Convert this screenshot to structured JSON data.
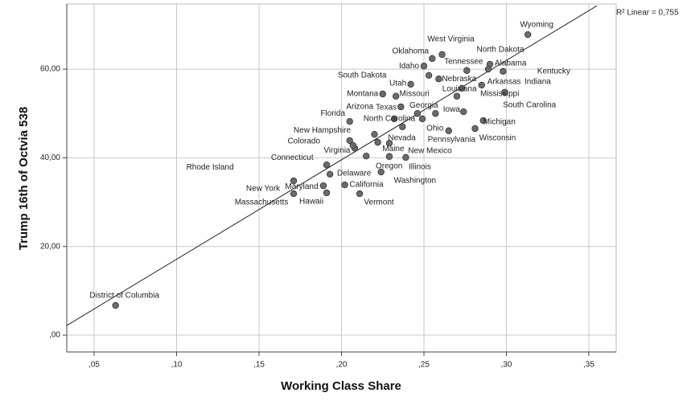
{
  "chart_data": {
    "type": "scatter",
    "x_label": "Working Class Share",
    "y_label": "Trump 16th of Octvia 538",
    "fit_label": "R² Linear = 0,755",
    "point_color": "#6b6b6b",
    "grid": true,
    "xlim": [
      0.0334,
      0.3666
    ],
    "ylim": [
      -3.8,
      74.7
    ],
    "xticks": [
      {
        "value": 0.05,
        "label": ",05"
      },
      {
        "value": 0.1,
        "label": ",10"
      },
      {
        "value": 0.15,
        "label": ",15"
      },
      {
        "value": 0.2,
        "label": ",20"
      },
      {
        "value": 0.25,
        "label": ",25"
      },
      {
        "value": 0.3,
        "label": ",30"
      },
      {
        "value": 0.35,
        "label": ",35"
      }
    ],
    "yticks": [
      {
        "value": 0,
        "label": ",00"
      },
      {
        "value": 20,
        "label": "20,00"
      },
      {
        "value": 40,
        "label": "40,00"
      },
      {
        "value": 60,
        "label": "60,00"
      }
    ],
    "fit_x": [
      0.0334,
      0.3549
    ],
    "fit_y": [
      2.18,
      74.3
    ],
    "point_labels": [
      "Wyoming",
      "West Virginia",
      "Oklahoma",
      "North Dakota",
      "Idaho",
      "Tennessee",
      "Alabama",
      "Kentucky",
      "South Dakota",
      "Nebraska",
      "Utah",
      "Arkansas",
      "Indiana",
      "Louisiana",
      "Mississippi",
      "Montana",
      "Missouri",
      "South Carolina",
      "Iowa",
      "Arizona",
      "Texas",
      "Georgia",
      "North Carolina",
      "Florida",
      "Michigan",
      "Ohio",
      "Wisconsin",
      "New Hampshire",
      "Nevada",
      "Pennsylvania",
      "Colorado",
      "Maine",
      "New Mexico",
      "Virginia",
      "Connecticut",
      "Illinois",
      "Oregon",
      "Rhode Island",
      "Delaware",
      "Washington",
      "New York",
      "Maryland",
      "California",
      "Massachusetts",
      "Hawaii",
      "Vermont",
      "District of Columbia"
    ],
    "x": [
      0.313,
      0.261,
      0.255,
      0.29,
      0.25,
      0.276,
      0.289,
      0.298,
      0.253,
      0.259,
      0.242,
      0.285,
      0.299,
      0.273,
      0.27,
      0.225,
      0.233,
      0.274,
      0.257,
      0.236,
      0.232,
      0.246,
      0.249,
      0.205,
      0.286,
      0.265,
      0.281,
      0.22,
      0.222,
      0.237,
      0.205,
      0.229,
      0.239,
      0.208,
      0.215,
      0.229,
      0.224,
      0.191,
      0.193,
      0.207,
      0.171,
      0.189,
      0.202,
      0.171,
      0.191,
      0.211,
      0.063
    ],
    "values": [
      67.8,
      63.3,
      62.4,
      61.1,
      60.7,
      59.7,
      60.0,
      59.5,
      58.6,
      57.8,
      56.6,
      56.4,
      54.8,
      55.7,
      53.9,
      54.4,
      53.9,
      50.4,
      50.0,
      51.5,
      48.8,
      50.0,
      48.8,
      48.2,
      48.4,
      46.1,
      46.6,
      45.3,
      43.5,
      47.0,
      43.9,
      43.3,
      40.1,
      42.2,
      40.4,
      40.3,
      36.8,
      38.4,
      36.3,
      42.8,
      34.8,
      33.7,
      33.9,
      31.9,
      32.1,
      31.9,
      6.7
    ]
  }
}
